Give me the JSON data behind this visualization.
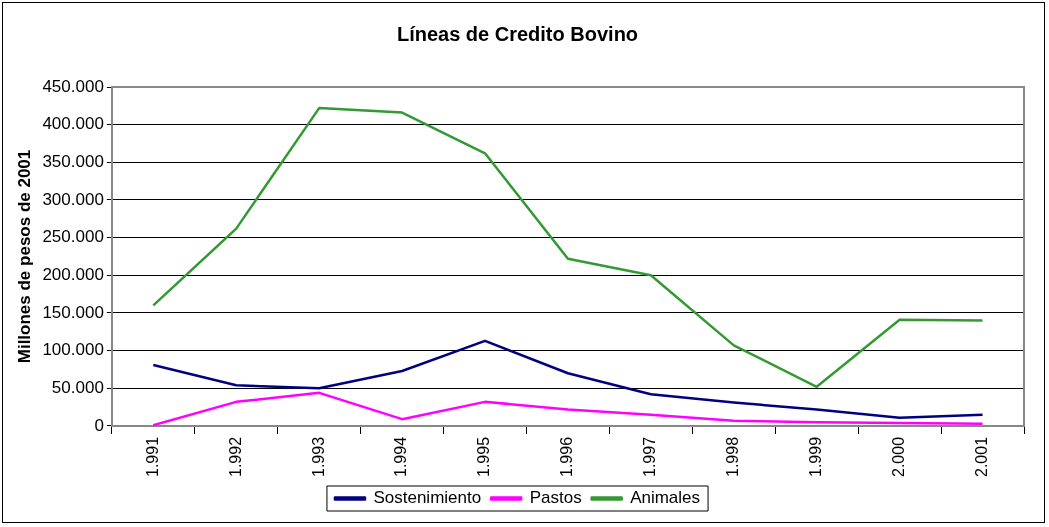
{
  "chart_data": {
    "type": "line",
    "title": "Líneas de Credito Bovino",
    "ylabel": "Millones de pesos de 2001",
    "categories": [
      "1.991",
      "1.992",
      "1.993",
      "1.994",
      "1.995",
      "1.996",
      "1.997",
      "1.998",
      "1.999",
      "2.000",
      "2.001"
    ],
    "series": [
      {
        "name": "Sostenimiento",
        "color": "#000080",
        "values": [
          81000,
          54000,
          50000,
          73000,
          113000,
          70000,
          42000,
          31000,
          22000,
          11000,
          15000
        ]
      },
      {
        "name": "Pastos",
        "color": "#ff00ff",
        "values": [
          1000,
          32000,
          44000,
          9000,
          32000,
          22000,
          15000,
          7000,
          5000,
          4000,
          3000
        ]
      },
      {
        "name": "Animales",
        "color": "#339933",
        "values": [
          160000,
          262000,
          422000,
          416000,
          362000,
          222000,
          200000,
          107000,
          52000,
          141000,
          140000
        ]
      }
    ],
    "ylim": [
      0,
      450000
    ],
    "yticks": [
      {
        "value": 0,
        "label": "0"
      },
      {
        "value": 50000,
        "label": "50.000"
      },
      {
        "value": 100000,
        "label": "100.000"
      },
      {
        "value": 150000,
        "label": "150.000"
      },
      {
        "value": 200000,
        "label": "200.000"
      },
      {
        "value": 250000,
        "label": "250.000"
      },
      {
        "value": 300000,
        "label": "300.000"
      },
      {
        "value": 350000,
        "label": "350.000"
      },
      {
        "value": 400000,
        "label": "400.000"
      },
      {
        "value": 450000,
        "label": "450.000"
      }
    ],
    "grid": "y",
    "legend": "bottom",
    "marker": "none",
    "line_style": "solid"
  }
}
